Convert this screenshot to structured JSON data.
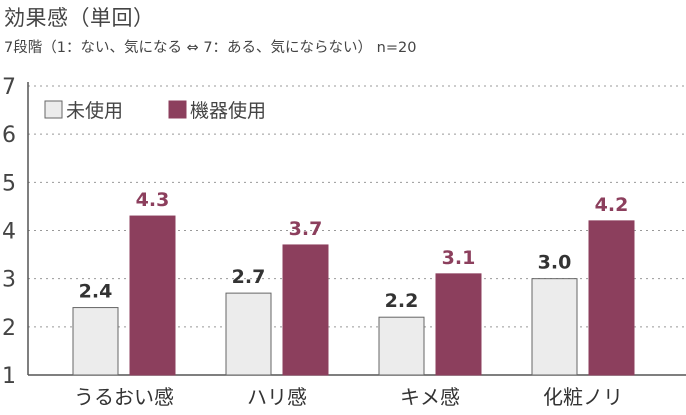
{
  "title": "効果感（単回）",
  "subtitle": "7段階（1：ない、気になる ⇔ 7：ある、気にならない） n=20",
  "chart_data": {
    "type": "bar",
    "categories": [
      "うるおい感",
      "ハリ感",
      "キメ感",
      "化粧ノリ"
    ],
    "series": [
      {
        "name": "未使用",
        "values": [
          2.4,
          2.7,
          2.2,
          3.0
        ],
        "color": "#ececec",
        "stroke": "#666666",
        "label_color": "#333333"
      },
      {
        "name": "機器使用",
        "values": [
          4.3,
          3.7,
          3.1,
          4.2
        ],
        "color": "#8c3f5d",
        "stroke": "#8c3f5d",
        "label_color": "#8c3f5d"
      }
    ],
    "ylim": [
      1,
      7
    ],
    "yticks": [
      "1",
      "2",
      "3",
      "4",
      "5",
      "6",
      "7"
    ],
    "value_labels": [
      [
        "2.4",
        "2.7",
        "2.2",
        "3.0"
      ],
      [
        "4.3",
        "3.7",
        "3.1",
        "4.2"
      ]
    ],
    "grid": true,
    "legend_position": "top-left"
  }
}
